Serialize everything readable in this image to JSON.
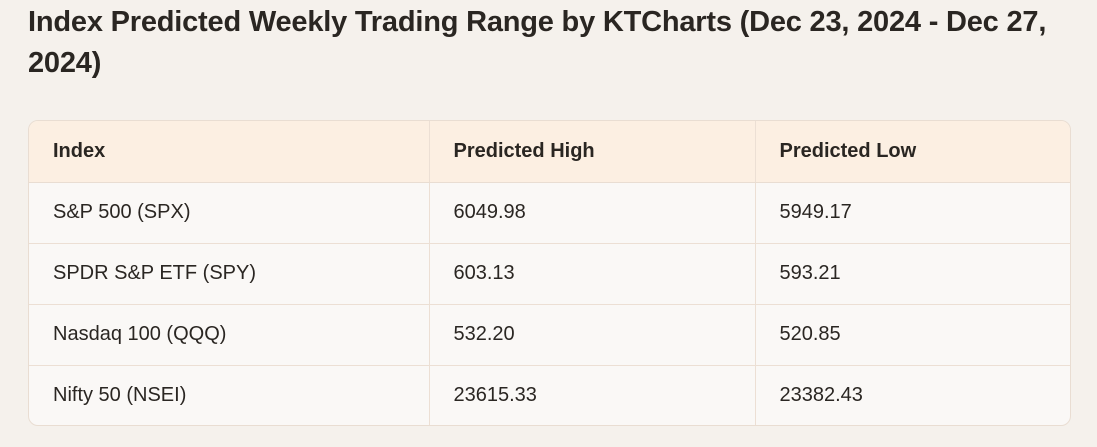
{
  "title": "Index Predicted Weekly Trading Range by KTCharts (Dec 23, 2024 - Dec 27, 2024)",
  "table": {
    "headers": [
      "Index",
      "Predicted High",
      "Predicted Low"
    ],
    "rows": [
      [
        "S&P 500 (SPX)",
        "6049.98",
        "5949.17"
      ],
      [
        "SPDR S&P ETF (SPY)",
        "603.13",
        "593.21"
      ],
      [
        "Nasdaq 100 (QQQ)",
        "532.20",
        "520.85"
      ],
      [
        "Nifty 50 (NSEI)",
        "23615.33",
        "23382.43"
      ]
    ]
  }
}
